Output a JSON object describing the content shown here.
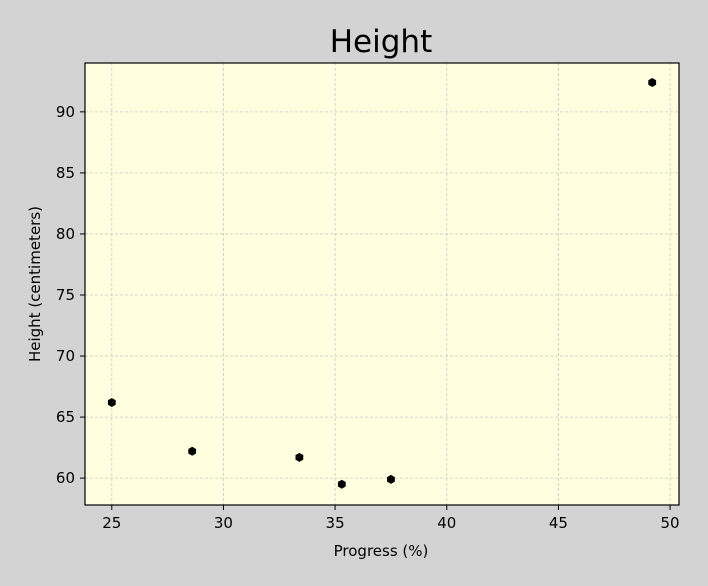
{
  "colors": {
    "page_background": "#d3d3d3",
    "plot_background": "#ffffe0",
    "marker": "#000000",
    "grid": "#c8c8c8"
  },
  "chart_data": {
    "type": "scatter",
    "title": "Height",
    "xlabel": "Progress (%)",
    "ylabel": "Height (centimeters)",
    "xlim": [
      23.8,
      50.4
    ],
    "ylim": [
      57.8,
      94.0
    ],
    "x_ticks": [
      25,
      30,
      35,
      40,
      45,
      50
    ],
    "y_ticks": [
      60,
      65,
      70,
      75,
      80,
      85,
      90
    ],
    "grid": true,
    "marker": "hexagon",
    "series": [
      {
        "x": [
          25.0,
          28.6,
          33.4,
          35.3,
          37.5,
          49.2
        ],
        "y": [
          66.2,
          62.2,
          61.7,
          59.5,
          59.9,
          92.4
        ]
      }
    ]
  }
}
